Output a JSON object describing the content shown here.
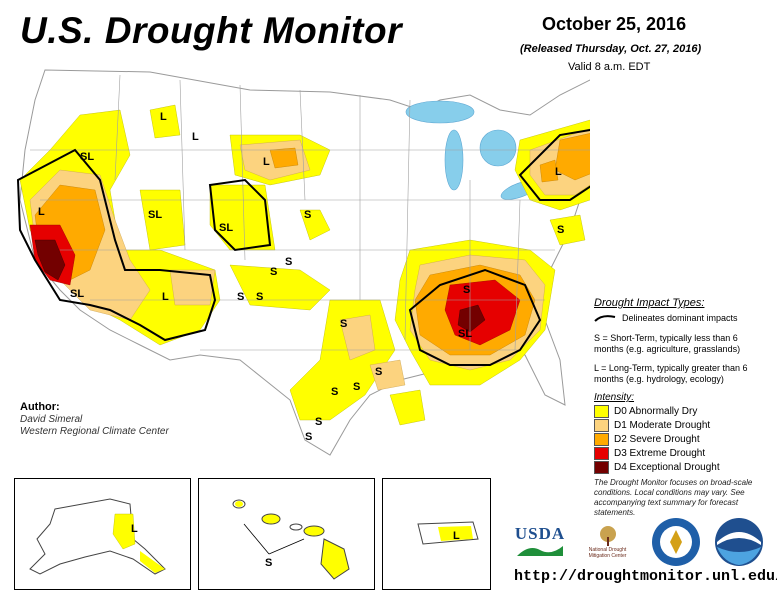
{
  "header": {
    "title": "U.S. Drought Monitor",
    "date": "October 25, 2016",
    "released": "(Released Thursday, Oct. 27, 2016)",
    "valid": "Valid 8 a.m. EDT"
  },
  "author": {
    "heading": "Author:",
    "name": "David Simeral",
    "org": "Western Regional Climate Center"
  },
  "legend": {
    "impact_heading": "Drought Impact Types:",
    "delineates": "Delineates dominant impacts",
    "short_term": "S = Short-Term, typically less than 6 months (e.g. agriculture, grasslands)",
    "long_term": "L = Long-Term, typically greater than 6 months (e.g. hydrology, ecology)",
    "intensity_heading": "Intensity:",
    "levels": [
      {
        "label": "D0 Abnormally Dry",
        "color": "#ffff00"
      },
      {
        "label": "D1 Moderate Drought",
        "color": "#fcd37f"
      },
      {
        "label": "D2 Severe Drought",
        "color": "#ffaa00"
      },
      {
        "label": "D3 Extreme Drought",
        "color": "#e60000"
      },
      {
        "label": "D4 Exceptional Drought",
        "color": "#730000"
      }
    ],
    "note": "The Drought Monitor focuses on broad-scale conditions. Local conditions may vary. See accompanying text summary for forecast statements."
  },
  "map_labels": {
    "S": "S",
    "L": "L",
    "SL": "SL"
  },
  "logos": {
    "usda": "USDA",
    "ndmc": "National Drought Mitigation Center"
  },
  "footer": {
    "url": "http://droughtmonitor.unl.edu/"
  },
  "colors": {
    "water": "#87ceeb",
    "land": "#ffffff",
    "D0": "#ffff00",
    "D1": "#fcd37f",
    "D2": "#ffaa00",
    "D3": "#e60000",
    "D4": "#730000"
  }
}
